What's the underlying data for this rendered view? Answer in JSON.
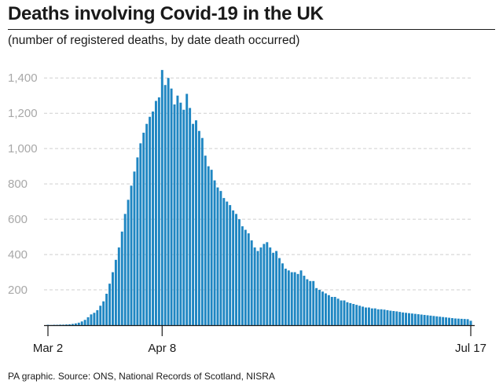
{
  "header": {
    "title": "Deaths involving Covid-19 in the UK",
    "subtitle": "(number of registered deaths, by date death occurred)"
  },
  "footer": {
    "source": "PA graphic. Source: ONS, National Records of Scotland, NISRA"
  },
  "colors": {
    "bar": "#1f86c2",
    "grid": "#cfcfcf",
    "axis": "#1a1a1a",
    "tick_label": "#a8a8a8"
  },
  "chart_data": {
    "type": "bar",
    "title": "Deaths involving Covid-19 in the UK",
    "subtitle": "(number of registered deaths, by date death occurred)",
    "xlabel": "",
    "ylabel": "",
    "ylim": [
      0,
      1450
    ],
    "grid": true,
    "yticks": [
      {
        "value": 200,
        "label": "200"
      },
      {
        "value": 400,
        "label": "400"
      },
      {
        "value": 600,
        "label": "600"
      },
      {
        "value": 800,
        "label": "800"
      },
      {
        "value": 1000,
        "label": "1,000"
      },
      {
        "value": 1200,
        "label": "1,200"
      },
      {
        "value": 1400,
        "label": "1,400"
      }
    ],
    "xticks": [
      {
        "index": 0,
        "label": "Mar 2"
      },
      {
        "index": 37,
        "label": "Apr 8"
      },
      {
        "index": 137,
        "label": "Jul 17"
      }
    ],
    "x_start": "Mar 2",
    "x_end": "Jul 17",
    "values": [
      2,
      1,
      2,
      2,
      3,
      3,
      4,
      5,
      7,
      10,
      14,
      21,
      30,
      45,
      61,
      70,
      85,
      110,
      135,
      178,
      235,
      300,
      370,
      440,
      530,
      630,
      710,
      790,
      870,
      950,
      1030,
      1090,
      1140,
      1180,
      1210,
      1270,
      1290,
      1445,
      1360,
      1400,
      1340,
      1250,
      1300,
      1260,
      1220,
      1310,
      1230,
      1140,
      1160,
      1100,
      1060,
      960,
      900,
      880,
      820,
      780,
      760,
      720,
      700,
      680,
      650,
      630,
      600,
      560,
      540,
      520,
      480,
      440,
      420,
      440,
      460,
      470,
      440,
      410,
      420,
      380,
      350,
      320,
      310,
      300,
      300,
      290,
      310,
      280,
      260,
      250,
      250,
      210,
      200,
      190,
      180,
      170,
      160,
      160,
      150,
      140,
      140,
      130,
      125,
      120,
      115,
      110,
      105,
      100,
      100,
      95,
      95,
      90,
      90,
      88,
      85,
      82,
      80,
      78,
      75,
      72,
      70,
      68,
      66,
      64,
      62,
      60,
      58,
      56,
      54,
      52,
      50,
      48,
      46,
      44,
      42,
      40,
      38,
      37,
      36,
      35,
      34,
      25
    ]
  }
}
